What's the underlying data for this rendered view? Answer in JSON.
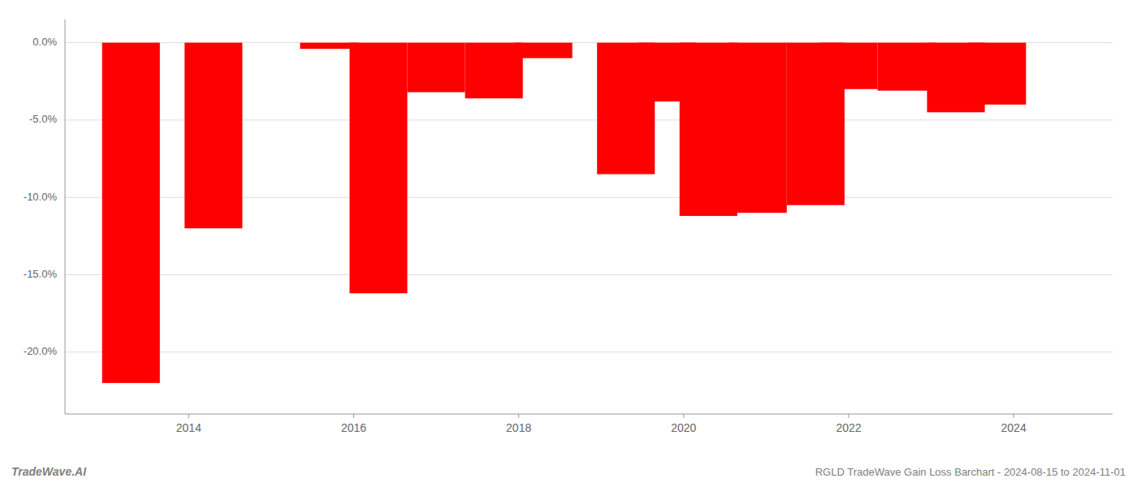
{
  "chart_data": {
    "type": "bar",
    "x": [
      2013.3,
      2014.3,
      2015.7,
      2016.3,
      2017.0,
      2017.7,
      2018.3,
      2019.3,
      2019.8,
      2020.3,
      2020.9,
      2021.6,
      2022.0,
      2022.7,
      2023.3,
      2023.8
    ],
    "values": [
      -22.0,
      -12.0,
      -0.4,
      -16.2,
      -3.2,
      -3.6,
      -1.0,
      -8.5,
      -3.8,
      -11.2,
      -11.0,
      -10.5,
      -3.0,
      -3.1,
      -4.5,
      -4.0
    ],
    "color": "#ff0000",
    "xlim": [
      2012.5,
      2025.2
    ],
    "xticks": [
      2014,
      2016,
      2018,
      2020,
      2022,
      2024
    ],
    "ylim": [
      -24,
      1.5
    ],
    "yticks": [
      {
        "value": 0.0,
        "label": "0.0%"
      },
      {
        "value": -5.0,
        "label": "-5.0%"
      },
      {
        "value": -10.0,
        "label": "-10.0%"
      },
      {
        "value": -15.0,
        "label": "-15.0%"
      },
      {
        "value": -20.0,
        "label": "-20.0%"
      }
    ],
    "grid": true,
    "annotations": [
      "TradeWave.AI",
      "RGLD TradeWave Gain Loss Barchart - 2024-08-15 to 2024-11-01"
    ]
  }
}
